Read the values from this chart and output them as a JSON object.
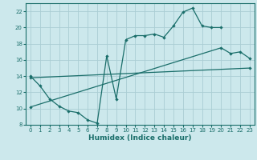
{
  "xlabel": "Humidex (Indice chaleur)",
  "ylabel": "",
  "bg_color": "#cce8ec",
  "grid_color": "#aacdd4",
  "line_color": "#1a6e6a",
  "xlim": [
    -0.5,
    23.5
  ],
  "ylim": [
    8,
    23
  ],
  "xticks": [
    0,
    1,
    2,
    3,
    4,
    5,
    6,
    7,
    8,
    9,
    10,
    11,
    12,
    13,
    14,
    15,
    16,
    17,
    18,
    19,
    20,
    21,
    22,
    23
  ],
  "yticks": [
    8,
    10,
    12,
    14,
    16,
    18,
    20,
    22
  ],
  "line1_x": [
    0,
    1,
    2,
    3,
    4,
    5,
    6,
    7,
    8,
    9,
    10,
    11,
    12,
    13,
    14,
    15,
    16,
    17,
    18,
    19,
    20
  ],
  "line1_y": [
    14,
    12.8,
    11.2,
    10.3,
    9.7,
    9.5,
    8.6,
    8.2,
    16.5,
    11.2,
    18.5,
    19.0,
    19.0,
    19.2,
    18.8,
    20.2,
    21.9,
    22.4,
    20.2,
    20.0,
    20.0
  ],
  "line2_x": [
    0,
    23
  ],
  "line2_y": [
    13.8,
    15.0
  ],
  "line3_x": [
    0,
    20,
    21,
    22,
    23
  ],
  "line3_y": [
    10.2,
    17.5,
    16.8,
    17.0,
    16.2
  ]
}
